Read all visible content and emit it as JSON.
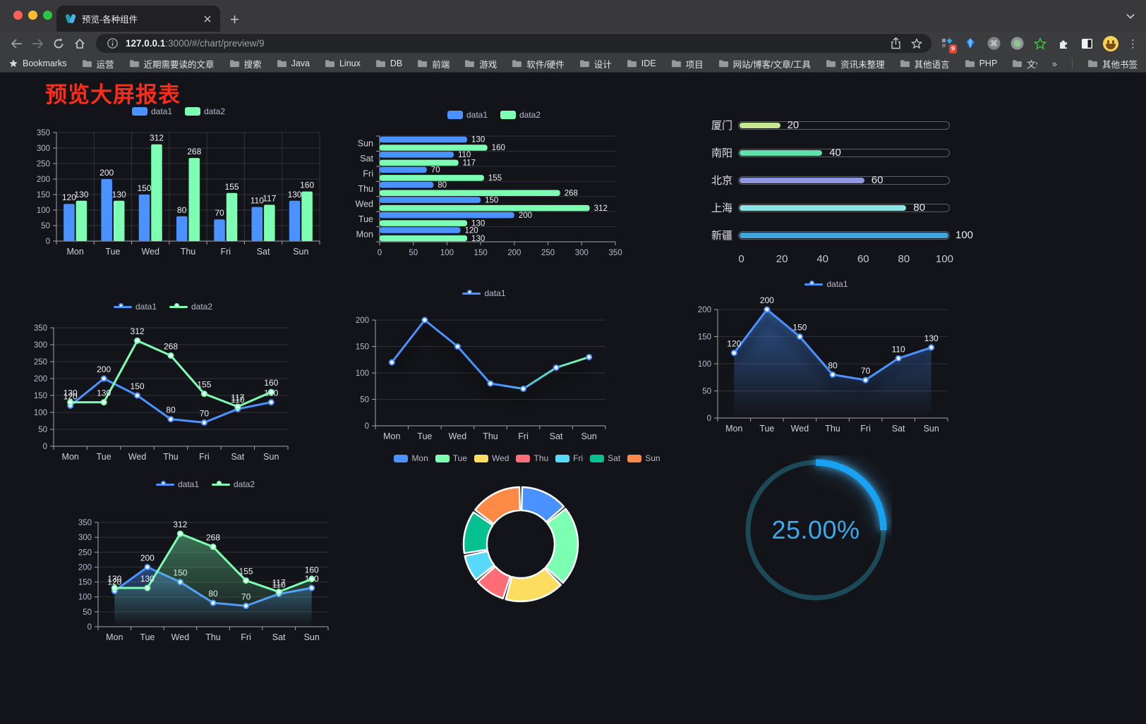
{
  "browser": {
    "tab": {
      "title": "预览-各种组件"
    },
    "url": {
      "host": "127.0.0.1",
      "rest": ":3000/#/chart/preview/9"
    },
    "bookmarks_label": "Bookmarks",
    "bookmarks": [
      "运营",
      "近期需要读的文章",
      "搜索",
      "Java",
      "Linux",
      "DB",
      "前端",
      "游戏",
      "软件/硬件",
      "设计",
      "IDE",
      "项目",
      "网站/博客/文章/工具",
      "资讯未整理",
      "其他语言",
      "PHP",
      "文件服务器"
    ],
    "bookmarks_overflow": "»",
    "other_bookmarks": "其他书签",
    "extension_badge": "9"
  },
  "page": {
    "title": "预览大屏报表",
    "title_color": "#fb2c18",
    "background": "#131419"
  },
  "theme": {
    "axis_label": "#b9b8ce",
    "cat_label": "#cfd0d6",
    "axis_line": "#9fa3ad",
    "grid": "rgba(255,255,255,0.13)",
    "value_label": "#eceff4",
    "series_blue": "#4992ff",
    "series_green": "#7cffb2"
  },
  "chart_data": [
    {
      "id": "grouped-bar",
      "type": "bar",
      "orientation": "vertical",
      "title": "",
      "legend_position": "top",
      "grid": true,
      "value_labels": true,
      "categories": [
        "Mon",
        "Tue",
        "Wed",
        "Thu",
        "Fri",
        "Sat",
        "Sun"
      ],
      "series": [
        {
          "name": "data1",
          "color": "#4992ff",
          "values": [
            120,
            200,
            150,
            80,
            70,
            110,
            130
          ]
        },
        {
          "name": "data2",
          "color": "#7cffb2",
          "values": [
            130,
            130,
            312,
            268,
            155,
            117,
            160
          ]
        }
      ],
      "ylim": [
        0,
        350
      ],
      "ytick_step": 50
    },
    {
      "id": "horizontal-bar",
      "type": "bar",
      "orientation": "horizontal",
      "legend_position": "top",
      "value_labels": true,
      "categories_top_to_bottom": [
        "Sun",
        "Sat",
        "Fri",
        "Thu",
        "Wed",
        "Tue",
        "Mon"
      ],
      "series": [
        {
          "name": "data1",
          "color": "#4992ff",
          "values_top_to_bottom": [
            130,
            110,
            70,
            80,
            150,
            200,
            120
          ]
        },
        {
          "name": "data2",
          "color": "#7cffb2",
          "values_top_to_bottom": [
            160,
            117,
            155,
            268,
            312,
            130,
            130
          ]
        }
      ],
      "xlim": [
        0,
        350
      ],
      "xtick_step": 50
    },
    {
      "id": "progress-bars",
      "type": "bar",
      "variant": "progress",
      "rows": [
        {
          "label": "厦门",
          "value": 20,
          "color": "#c3e88d"
        },
        {
          "label": "南阳",
          "value": 40,
          "color": "#5fe0ad"
        },
        {
          "label": "北京",
          "value": 60,
          "color": "#9397e1"
        },
        {
          "label": "上海",
          "value": 80,
          "color": "#8ce5e2"
        },
        {
          "label": "新疆",
          "value": 100,
          "color": "#41a5dc"
        }
      ],
      "xticks": [
        0,
        20,
        40,
        60,
        80,
        100
      ],
      "xlim": [
        0,
        100
      ]
    },
    {
      "id": "line-two-series",
      "type": "line",
      "legend_position": "top",
      "value_labels": true,
      "categories": [
        "Mon",
        "Tue",
        "Wed",
        "Thu",
        "Fri",
        "Sat",
        "Sun"
      ],
      "series": [
        {
          "name": "data1",
          "color": "#4992ff",
          "values": [
            120,
            200,
            150,
            80,
            70,
            110,
            130
          ]
        },
        {
          "name": "data2",
          "color": "#7cffb2",
          "values": [
            130,
            130,
            312,
            268,
            155,
            117,
            160
          ]
        }
      ],
      "ylim": [
        0,
        350
      ],
      "ytick_step": 50
    },
    {
      "id": "gradient-line",
      "type": "line",
      "legend_position": "top",
      "value_labels": false,
      "shadow": true,
      "categories": [
        "Mon",
        "Tue",
        "Wed",
        "Thu",
        "Fri",
        "Sat",
        "Sun"
      ],
      "series": [
        {
          "name": "data1",
          "color_gradient": [
            "#4992ff",
            "#7cffb2"
          ],
          "legend_color": "#4992ff",
          "values": [
            120,
            200,
            150,
            80,
            70,
            110,
            130
          ]
        }
      ],
      "ylim": [
        0,
        200
      ],
      "ytick_step": 50
    },
    {
      "id": "area-one-series",
      "type": "area",
      "legend_position": "top",
      "value_labels": true,
      "shadow": true,
      "categories": [
        "Mon",
        "Tue",
        "Wed",
        "Thu",
        "Fri",
        "Sat",
        "Sun"
      ],
      "series": [
        {
          "name": "data1",
          "color": "#4992ff",
          "fill_from": "rgba(73,146,255,0.50)",
          "fill_to": "rgba(73,146,255,0)",
          "values": [
            120,
            200,
            150,
            80,
            70,
            110,
            130
          ]
        }
      ],
      "ylim": [
        0,
        200
      ],
      "ytick_step": 50
    },
    {
      "id": "area-two-series",
      "type": "area",
      "legend_position": "top",
      "value_labels": true,
      "categories": [
        "Mon",
        "Tue",
        "Wed",
        "Thu",
        "Fri",
        "Sat",
        "Sun"
      ],
      "series": [
        {
          "name": "data1",
          "color": "#4992ff",
          "fill_from": "rgba(73,146,255,0.42)",
          "fill_to": "rgba(73,146,255,0)",
          "values": [
            120,
            200,
            150,
            80,
            70,
            110,
            130
          ]
        },
        {
          "name": "data2",
          "color": "#7cffb2",
          "fill_from": "rgba(124,255,178,0.40)",
          "fill_to": "rgba(124,255,178,0)",
          "values": [
            130,
            130,
            312,
            268,
            155,
            117,
            160
          ]
        }
      ],
      "ylim": [
        0,
        350
      ],
      "ytick_step": 50
    },
    {
      "id": "donut",
      "type": "pie",
      "legend_position": "top",
      "slices": [
        {
          "label": "Mon",
          "value": 120,
          "color": "#4992ff"
        },
        {
          "label": "Tue",
          "value": 200,
          "color": "#7cffb2"
        },
        {
          "label": "Wed",
          "value": 150,
          "color": "#fddd60"
        },
        {
          "label": "Thu",
          "value": 80,
          "color": "#ff6e76"
        },
        {
          "label": "Fri",
          "value": 70,
          "color": "#58d9f9"
        },
        {
          "label": "Sat",
          "value": 110,
          "color": "#05c091"
        },
        {
          "label": "Sun",
          "value": 130,
          "color": "#ff8a45"
        }
      ]
    },
    {
      "id": "gauge",
      "type": "gauge",
      "value_text": "25.00%",
      "percent": 25,
      "color": "#17a2f3",
      "track_color": "#1c4956",
      "text_color": "#3aa9ec"
    }
  ]
}
